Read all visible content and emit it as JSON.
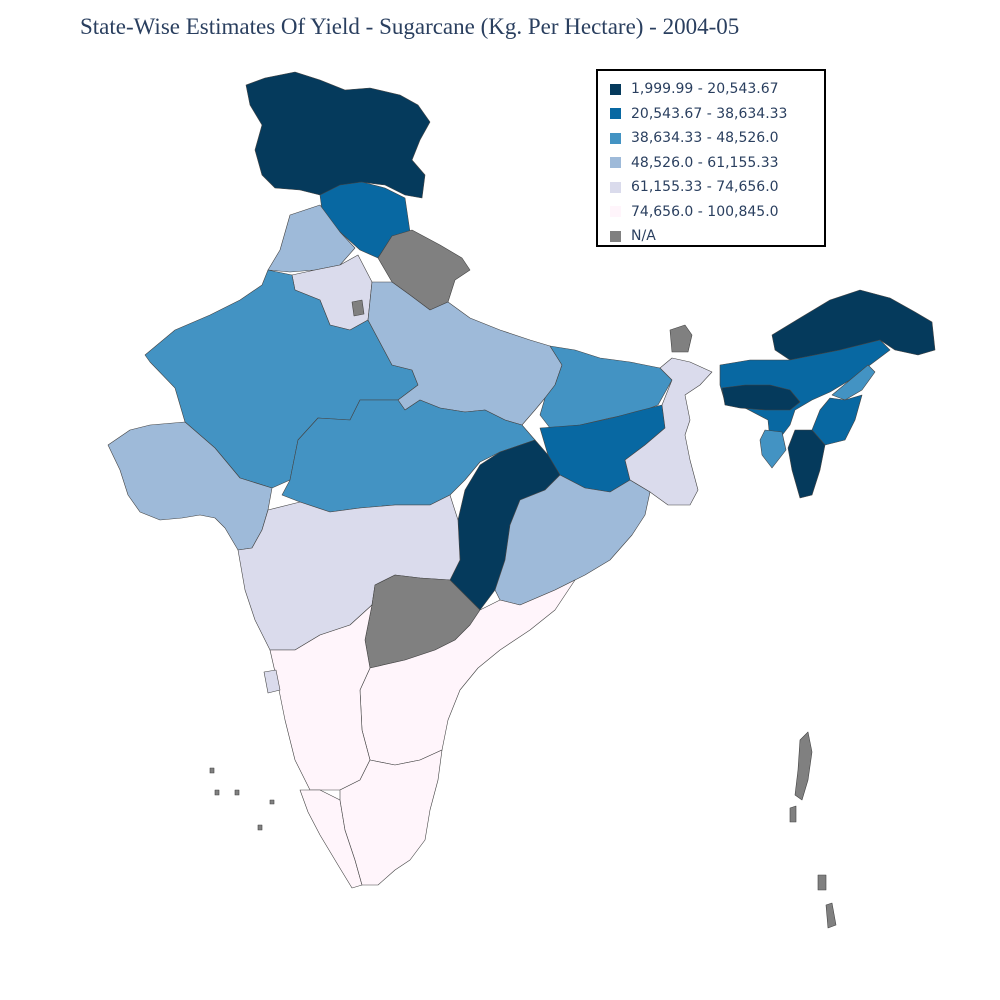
{
  "title": "State-Wise Estimates Of Yield - Sugarcane (Kg. Per Hectare) - 2004-05",
  "legend": {
    "items": [
      {
        "label": "1,999.99 - 20,543.67",
        "color": "#053a5c"
      },
      {
        "label": "20,543.67 - 38,634.33",
        "color": "#0868a2"
      },
      {
        "label": "38,634.33 - 48,526.0",
        "color": "#4393c3"
      },
      {
        "label": "48,526.0 - 61,155.33",
        "color": "#9ebad9"
      },
      {
        "label": "61,155.33 - 74,656.0",
        "color": "#dadbec"
      },
      {
        "label": "74,656.0 - 100,845.0",
        "color": "#fff5fb"
      },
      {
        "label": "N/A",
        "color": "#808080"
      }
    ]
  },
  "map": {
    "type": "choropleth",
    "regions": [
      {
        "id": "jammu-kashmir",
        "class": 0
      },
      {
        "id": "himachal-pradesh",
        "class": 1
      },
      {
        "id": "punjab",
        "class": 3
      },
      {
        "id": "uttarakhand",
        "class": 6
      },
      {
        "id": "haryana",
        "class": 4
      },
      {
        "id": "delhi",
        "class": 6
      },
      {
        "id": "rajasthan",
        "class": 2
      },
      {
        "id": "uttar-pradesh",
        "class": 3
      },
      {
        "id": "bihar",
        "class": 2
      },
      {
        "id": "jharkhand",
        "class": 1
      },
      {
        "id": "west-bengal",
        "class": 4
      },
      {
        "id": "sikkim",
        "class": 6
      },
      {
        "id": "gujarat",
        "class": 3
      },
      {
        "id": "madhya-pradesh",
        "class": 2
      },
      {
        "id": "chhattisgarh",
        "class": 0
      },
      {
        "id": "odisha",
        "class": 3
      },
      {
        "id": "maharashtra",
        "class": 4
      },
      {
        "id": "telangana",
        "class": 6
      },
      {
        "id": "andhra-pradesh",
        "class": 5
      },
      {
        "id": "karnataka",
        "class": 5
      },
      {
        "id": "goa",
        "class": 4
      },
      {
        "id": "kerala",
        "class": 5
      },
      {
        "id": "tamil-nadu",
        "class": 5
      },
      {
        "id": "arunachal-pradesh",
        "class": 0
      },
      {
        "id": "assam",
        "class": 1
      },
      {
        "id": "meghalaya",
        "class": 0
      },
      {
        "id": "nagaland",
        "class": 2
      },
      {
        "id": "manipur",
        "class": 1
      },
      {
        "id": "mizoram",
        "class": 0
      },
      {
        "id": "tripura",
        "class": 2
      },
      {
        "id": "andaman-nicobar",
        "class": 6
      },
      {
        "id": "lakshadweep",
        "class": 6
      }
    ]
  }
}
